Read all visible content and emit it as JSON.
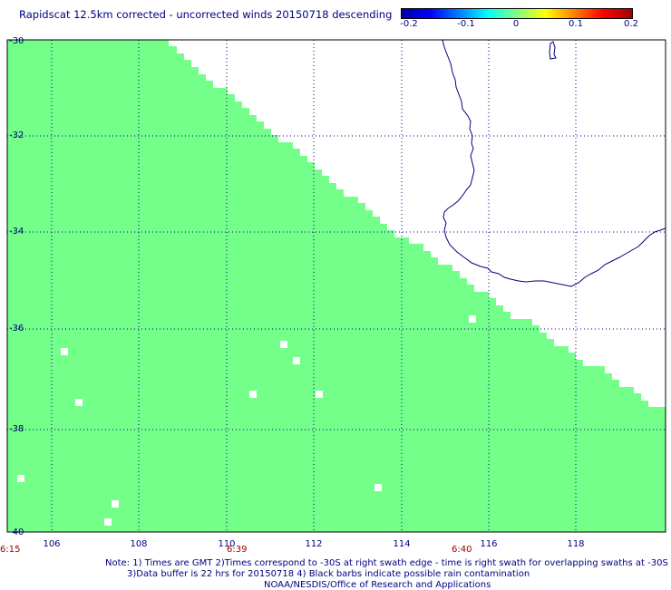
{
  "title": "Rapidscat 12.5km corrected - uncorrected winds 20150718 descending",
  "colorbar": {
    "colors": [
      "#0000a0",
      "#0000ff",
      "#0080ff",
      "#00ffff",
      "#80ff80",
      "#ffff00",
      "#ff8000",
      "#ff0000",
      "#a00000"
    ],
    "ticks": [
      "-0.2",
      "-0.1",
      "0",
      "0.1",
      "0.2"
    ]
  },
  "swath_color": "#73ff8a",
  "coast_color": "#000080",
  "grid_color": "#000080",
  "axes": {
    "lon_ticks": [
      "106",
      "108",
      "110",
      "112",
      "114",
      "116",
      "118"
    ],
    "lat_ticks": [
      "-30",
      "-32",
      "-34",
      "-36",
      "-38",
      "-40"
    ]
  },
  "times": [
    "6:15",
    "6:39",
    "6:40"
  ],
  "notes": [
    "Note: 1) Times are GMT 2)Times correspond to -30S at right swath edge - time is right swath for overlapping swaths at -30S",
    "3)Data buffer is 22 hrs for 20150718 4) Black barbs indicate possible rain contamination",
    "NOAA/NESDIS/Office of Research and Applications"
  ]
}
